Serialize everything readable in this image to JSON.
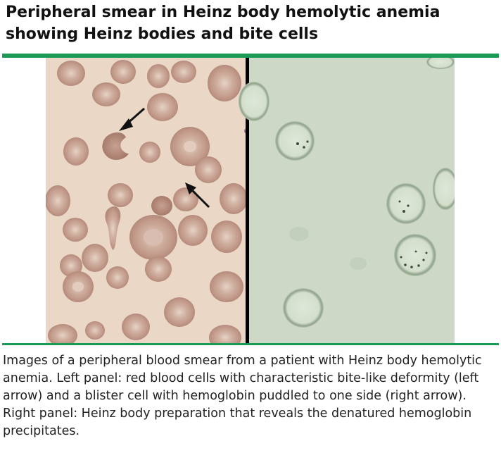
{
  "title": "Peripheral smear in Heinz body hemolytic anemia showing Heinz bodies and bite cells",
  "caption": "Images of a peripheral blood smear from a patient with Heinz body hemolytic anemia. Left panel: red blood cells with characteristic bite-like deformity (left arrow) and a blister cell with hemoglobin puddled to one side (right arrow). Right panel: Heinz body preparation that reveals the denatured hemoglobin precipitates.",
  "colors": {
    "accent_rule": "#1a9a55",
    "left_background": "#ead7c6",
    "right_background": "#cdd8c6",
    "rbc_fill": "#c5a394",
    "heinz_cell_fill": "#d9e3d2",
    "panel_divider": "#000000"
  }
}
